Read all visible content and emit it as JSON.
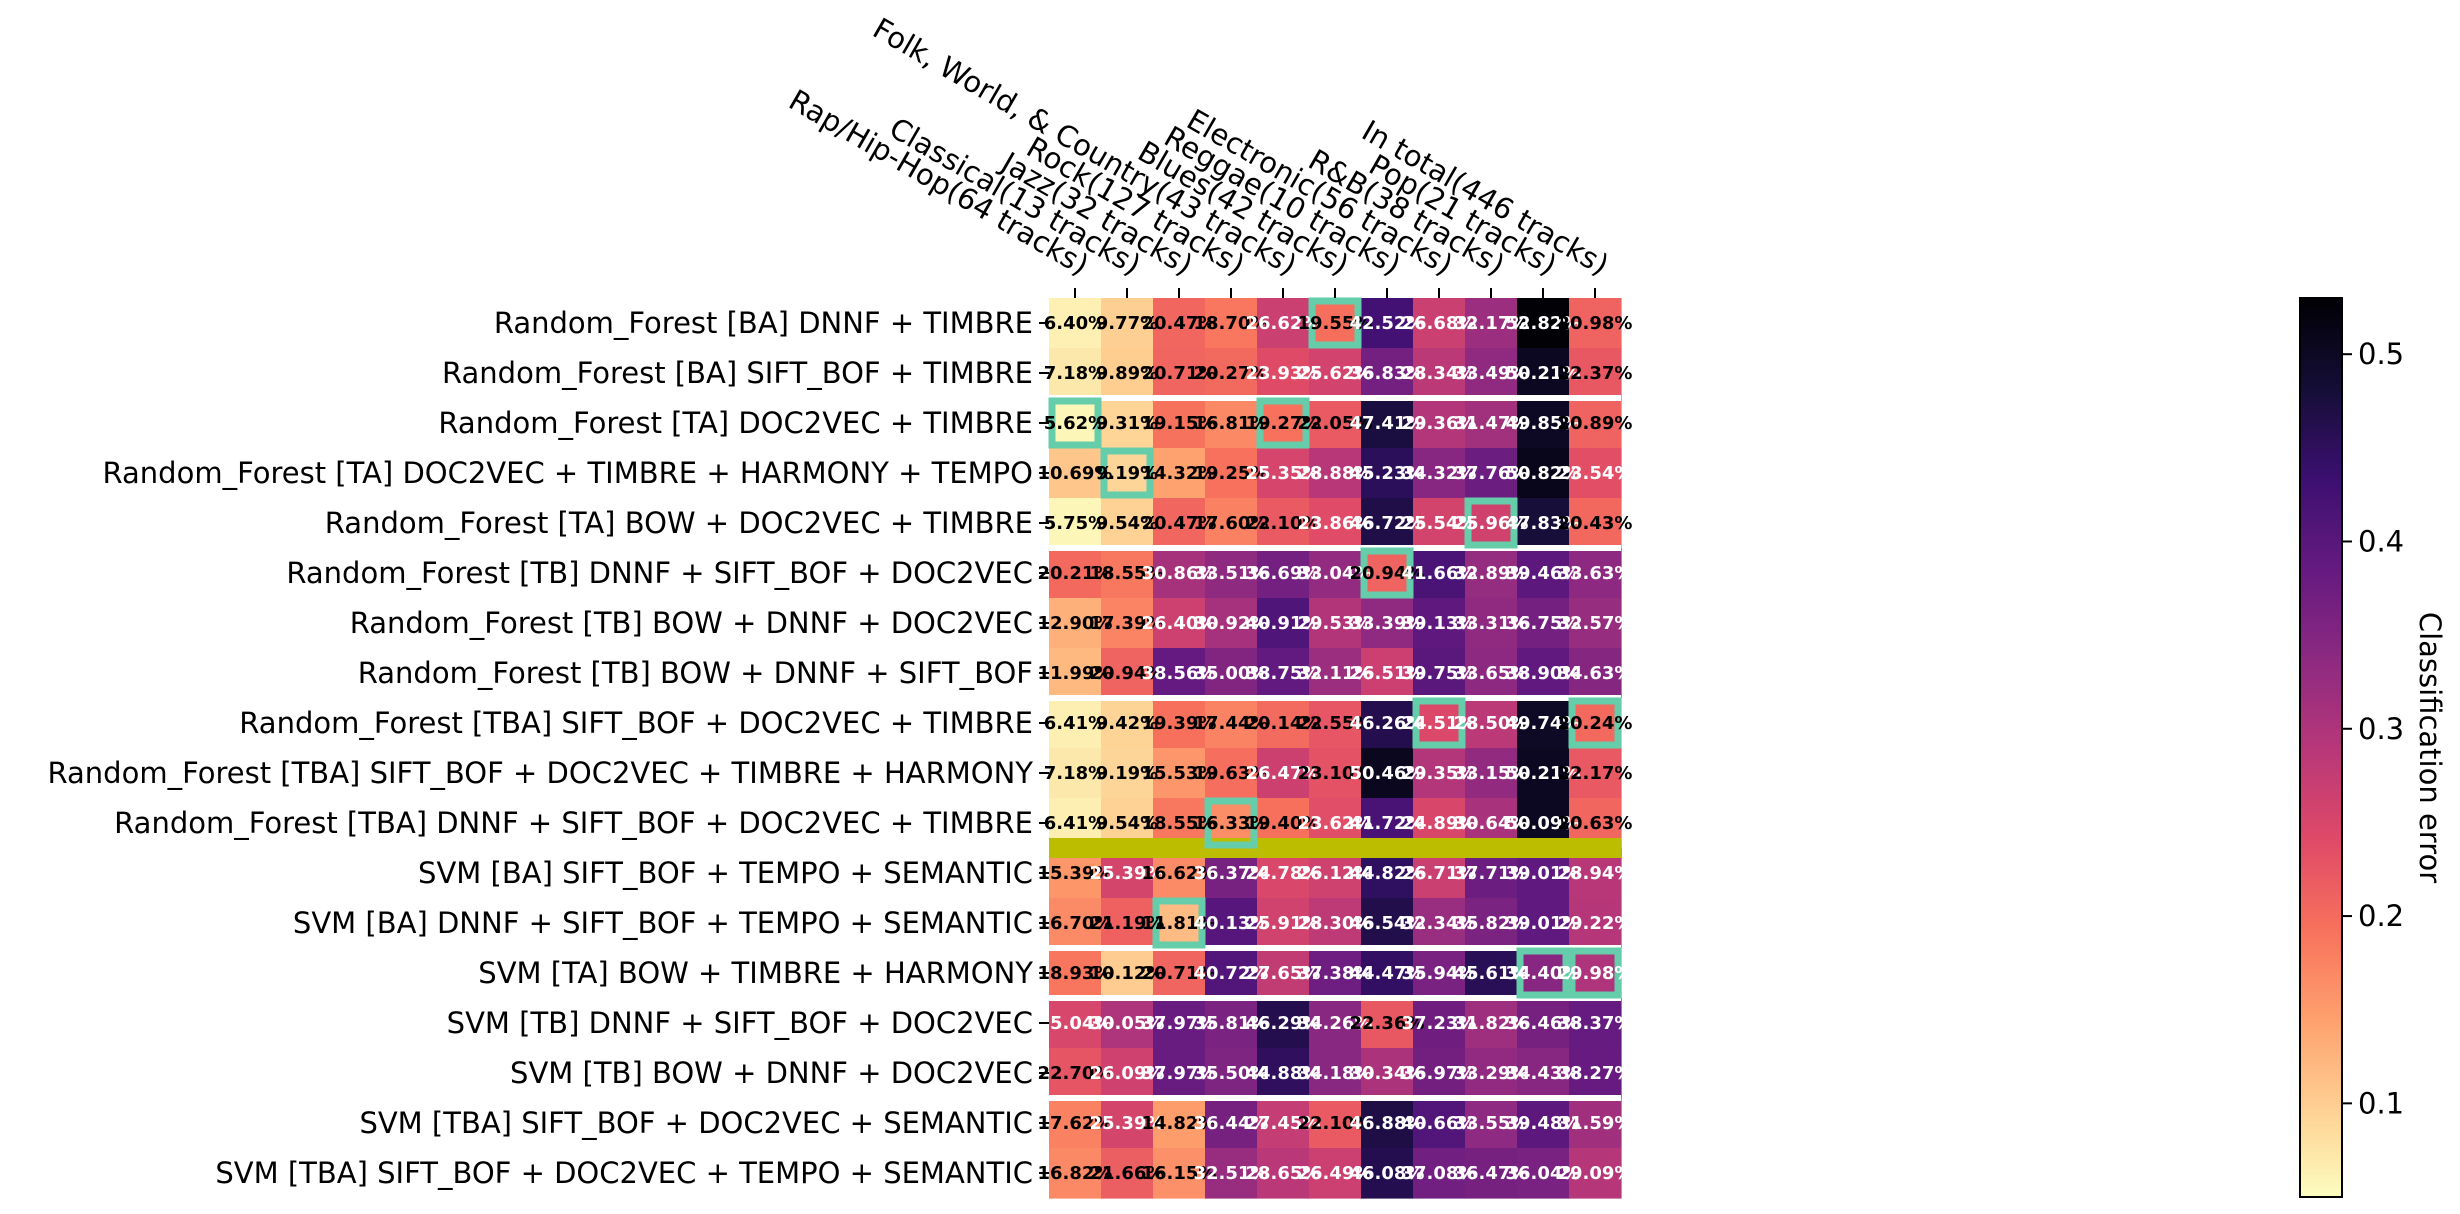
{
  "chart_data": {
    "type": "heatmap",
    "title": "",
    "columns": [
      "Rap/Hip-Hop(64 tracks)",
      "Classical(13 tracks)",
      "Jazz(32 tracks)",
      "Rock(127 tracks)",
      "Folk, World, & Country(43 tracks)",
      "Blues(42 tracks)",
      "Reggae(10 tracks)",
      "Electronic(56 tracks)",
      "R&B(38 tracks)",
      "Pop(21 tracks)",
      "In total(446 tracks)"
    ],
    "rows": [
      "Random_Forest [BA] DNNF + TIMBRE",
      "Random_Forest [BA] SIFT_BOF + TIMBRE",
      "Random_Forest [TA] DOC2VEC + TIMBRE",
      "Random_Forest [TA] DOC2VEC + TIMBRE + HARMONY + TEMPO",
      "Random_Forest [TA] BOW + DOC2VEC + TIMBRE",
      "Random_Forest [TB] DNNF + SIFT_BOF + DOC2VEC",
      "Random_Forest [TB] BOW + DNNF + DOC2VEC",
      "Random_Forest [TB] BOW + DNNF + SIFT_BOF",
      "Random_Forest [TBA] SIFT_BOF + DOC2VEC + TIMBRE",
      "Random_Forest [TBA] SIFT_BOF + DOC2VEC + TIMBRE + HARMONY",
      "Random_Forest [TBA] DNNF + SIFT_BOF + DOC2VEC + TIMBRE",
      "SVM [BA] SIFT_BOF + TEMPO + SEMANTIC",
      "SVM [BA] DNNF + SIFT_BOF + TEMPO + SEMANTIC",
      "SVM [TA] BOW + TIMBRE + HARMONY",
      "SVM [TB] DNNF + SIFT_BOF + DOC2VEC",
      "SVM [TB] BOW + DNNF + DOC2VEC",
      "SVM [TBA] SIFT_BOF + DOC2VEC + SEMANTIC",
      "SVM [TBA] SIFT_BOF + DOC2VEC + TEMPO + SEMANTIC"
    ],
    "values": [
      [
        6.4,
        9.77,
        20.47,
        18.7,
        26.62,
        19.55,
        42.52,
        26.68,
        32.17,
        52.82,
        20.98
      ],
      [
        7.18,
        9.89,
        20.71,
        20.27,
        23.93,
        25.62,
        36.83,
        28.34,
        33.49,
        50.21,
        22.37
      ],
      [
        5.62,
        9.31,
        19.15,
        16.81,
        19.27,
        22.05,
        47.41,
        29.36,
        31.47,
        49.85,
        20.89
      ],
      [
        10.69,
        9.19,
        14.32,
        19.25,
        25.35,
        28.88,
        45.23,
        34.32,
        37.76,
        50.82,
        23.54
      ],
      [
        5.75,
        9.54,
        20.47,
        17.6,
        22.1,
        23.86,
        46.72,
        25.54,
        25.96,
        47.83,
        20.43
      ],
      [
        20.21,
        18.55,
        30.86,
        33.51,
        36.69,
        33.04,
        20.94,
        41.66,
        32.89,
        39.46,
        33.63
      ],
      [
        12.9,
        17.39,
        26.4,
        30.92,
        40.91,
        29.53,
        33.39,
        39.13,
        33.31,
        36.75,
        32.57
      ],
      [
        11.99,
        20.94,
        38.56,
        35.0,
        38.75,
        32.11,
        26.51,
        39.75,
        33.65,
        38.9,
        34.63
      ],
      [
        6.41,
        9.42,
        19.39,
        17.44,
        20.14,
        22.55,
        46.26,
        24.51,
        28.5,
        49.74,
        20.24
      ],
      [
        7.18,
        9.19,
        15.53,
        19.63,
        26.47,
        23.1,
        50.46,
        29.35,
        33.15,
        50.21,
        22.17
      ],
      [
        6.41,
        9.54,
        18.55,
        16.33,
        19.4,
        23.62,
        41.72,
        24.89,
        30.64,
        50.09,
        20.63
      ],
      [
        15.39,
        25.39,
        16.62,
        36.37,
        24.78,
        26.12,
        44.82,
        26.71,
        37.71,
        39.01,
        28.94
      ],
      [
        16.7,
        21.19,
        11.81,
        40.13,
        25.91,
        28.3,
        46.54,
        32.34,
        35.82,
        39.01,
        29.22
      ],
      [
        18.93,
        10.12,
        20.71,
        40.72,
        27.65,
        37.38,
        44.47,
        35.94,
        45.61,
        34.4,
        29.98
      ],
      [
        25.04,
        30.05,
        37.97,
        35.81,
        46.29,
        34.26,
        22.36,
        37.23,
        31.82,
        36.46,
        38.37
      ],
      [
        22.7,
        26.09,
        37.97,
        35.5,
        44.88,
        34.18,
        30.34,
        36.97,
        33.29,
        34.43,
        38.27
      ],
      [
        17.62,
        25.39,
        14.82,
        36.44,
        27.45,
        22.1,
        46.88,
        40.66,
        33.55,
        39.48,
        31.59
      ],
      [
        16.82,
        21.66,
        16.15,
        32.51,
        28.65,
        26.49,
        46.08,
        37.08,
        36.47,
        36.04,
        29.09
      ]
    ],
    "value_format": "percent",
    "colormap": "magma_r",
    "vmin": 0.05,
    "vmax": 0.53,
    "colorbar": {
      "label": "Classification error",
      "ticks": [
        0.1,
        0.2,
        0.3,
        0.4,
        0.5
      ],
      "tick_labels": [
        "0.1",
        "0.2",
        "0.3",
        "0.4",
        "0.5"
      ]
    },
    "highlighted_min_cells": [
      [
        0,
        5
      ],
      [
        2,
        0
      ],
      [
        2,
        4
      ],
      [
        3,
        1
      ],
      [
        4,
        8
      ],
      [
        5,
        6
      ],
      [
        8,
        7
      ],
      [
        8,
        10
      ],
      [
        10,
        3
      ],
      [
        12,
        2
      ],
      [
        13,
        9
      ],
      [
        13,
        10
      ]
    ],
    "group_separators_after_rows": [
      1,
      4,
      7,
      12,
      13,
      15
    ],
    "model_separator_after_row": 10,
    "colors": {
      "highlight": "#66cdaa",
      "model_separator": "#bdbd00",
      "group_separator": "#ffffff"
    }
  }
}
